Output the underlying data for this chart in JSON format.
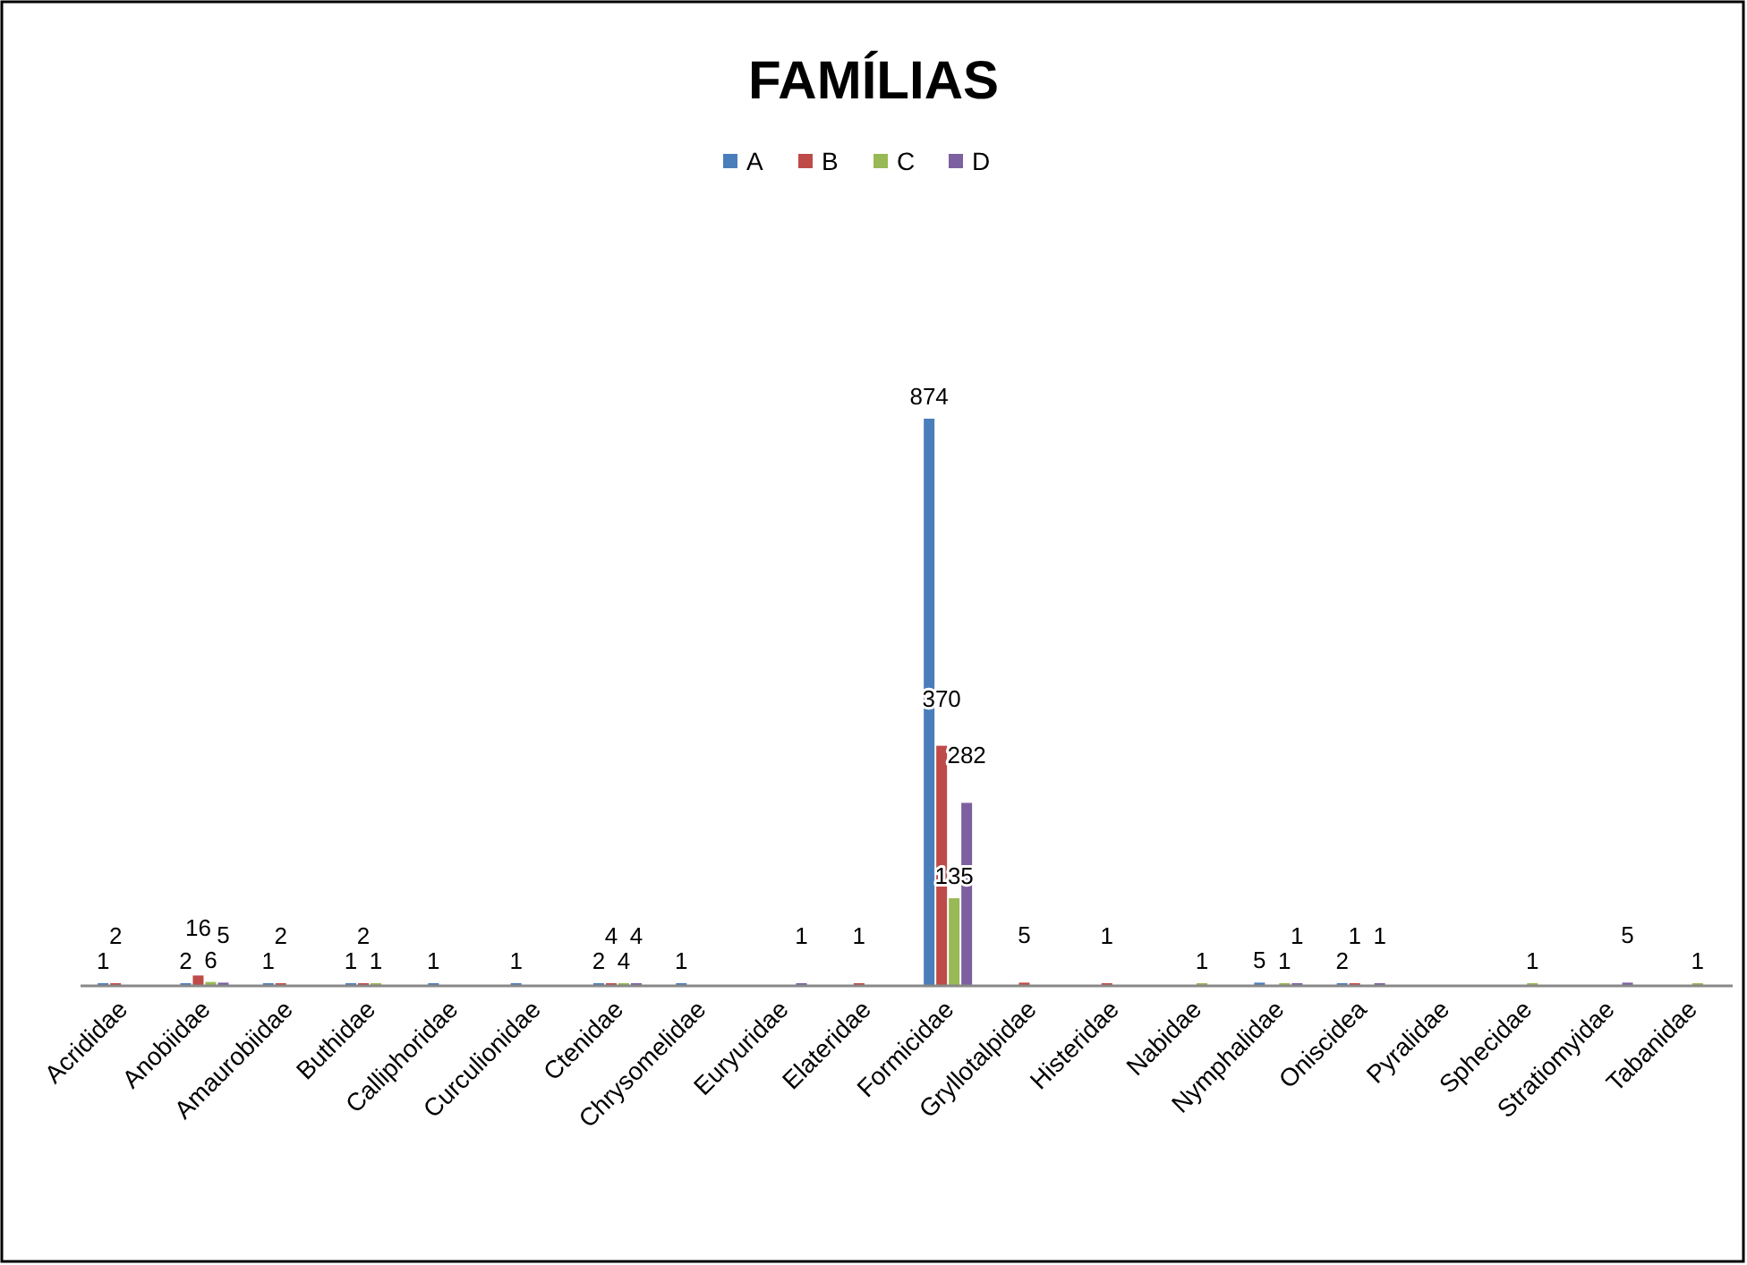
{
  "chart_data": {
    "type": "bar",
    "title": "FAMÍLIAS",
    "categories": [
      "Acrididae",
      "Anobiidae",
      "Amaurobiidae",
      "Buthidae",
      "Calliphoridae",
      "Curculionidae",
      "Ctenidae",
      "Chrysomelidae",
      "Euryuridae",
      "Elateridae",
      "Formicidae",
      "Gryllotalpidae",
      "Histeridae",
      "Nabidae",
      "Nymphalidae",
      "Oniscidea",
      "Pyralidae",
      "Sphecidae",
      "Stratiomyidae",
      "Tabanidae"
    ],
    "series": [
      {
        "name": "A",
        "color": "#4a7ebb",
        "values": [
          1,
          2,
          1,
          1,
          1,
          1,
          2,
          1,
          null,
          null,
          874,
          null,
          null,
          null,
          5,
          2,
          null,
          null,
          null,
          null
        ]
      },
      {
        "name": "B",
        "color": "#be4b48",
        "values": [
          2,
          16,
          2,
          2,
          null,
          null,
          4,
          null,
          null,
          1,
          370,
          5,
          1,
          null,
          null,
          1,
          null,
          null,
          null,
          null
        ]
      },
      {
        "name": "C",
        "color": "#98b954",
        "values": [
          null,
          6,
          null,
          1,
          null,
          null,
          4,
          null,
          null,
          null,
          135,
          null,
          null,
          1,
          1,
          null,
          null,
          1,
          null,
          1
        ]
      },
      {
        "name": "D",
        "color": "#7d60a0",
        "values": [
          null,
          5,
          null,
          null,
          null,
          null,
          4,
          null,
          1,
          null,
          282,
          null,
          null,
          null,
          1,
          1,
          null,
          null,
          5,
          null
        ]
      }
    ],
    "data_labels": true,
    "legend": "top",
    "grid": false
  }
}
